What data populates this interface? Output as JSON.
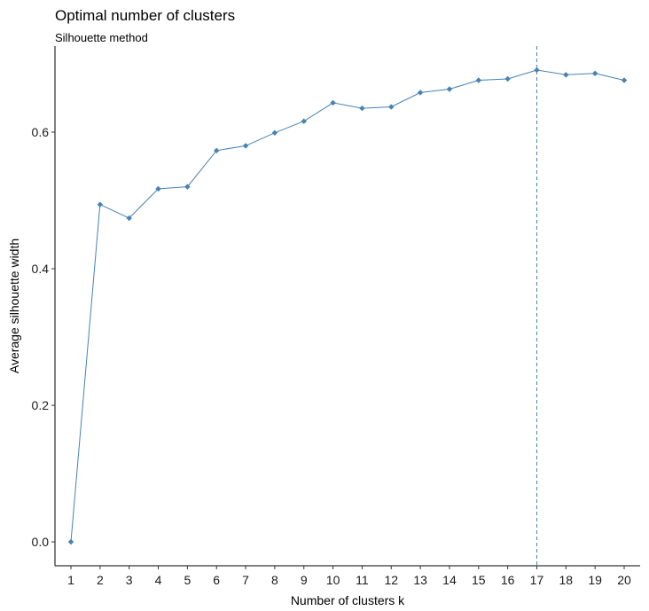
{
  "chart_data": {
    "type": "line",
    "title": "Optimal number of clusters",
    "subtitle": "Silhouette method",
    "xlabel": "Number of clusters k",
    "ylabel": "Average silhouette width",
    "categories": [
      "1",
      "2",
      "3",
      "4",
      "5",
      "6",
      "7",
      "8",
      "9",
      "10",
      "11",
      "12",
      "13",
      "14",
      "15",
      "16",
      "17",
      "18",
      "19",
      "20"
    ],
    "values": [
      0.0,
      0.494,
      0.474,
      0.517,
      0.52,
      0.573,
      0.58,
      0.599,
      0.616,
      0.643,
      0.635,
      0.637,
      0.658,
      0.663,
      0.676,
      0.678,
      0.691,
      0.684,
      0.686,
      0.676
    ],
    "yticks": [
      0.0,
      0.2,
      0.4,
      0.6
    ],
    "ytick_labels": [
      "0.0",
      "0.2",
      "0.4",
      "0.6"
    ],
    "ylim": [
      -0.035,
      0.726
    ],
    "optimal_k": "17",
    "grid": false,
    "legend": "none",
    "colors": {
      "line": "#4682B4",
      "point": "#4682B4",
      "reference_line": "#4682B4"
    }
  }
}
